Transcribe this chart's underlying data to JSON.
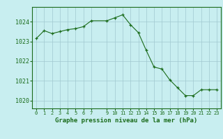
{
  "x": [
    0,
    1,
    2,
    3,
    4,
    5,
    6,
    7,
    9,
    10,
    11,
    12,
    13,
    14,
    15,
    16,
    17,
    18,
    19,
    20,
    21,
    22,
    23
  ],
  "y": [
    1023.15,
    1023.55,
    1023.4,
    1023.5,
    1023.6,
    1023.65,
    1023.75,
    1024.05,
    1024.05,
    1024.2,
    1024.35,
    1023.85,
    1023.45,
    1022.55,
    1021.7,
    1021.6,
    1021.05,
    1020.65,
    1020.25,
    1020.25,
    1020.55,
    1020.55,
    1020.55
  ],
  "line_color": "#1a6b1a",
  "marker_color": "#1a6b1a",
  "bg_color": "#c8eef0",
  "grid_color": "#a0c8d0",
  "xlabel": "Graphe pression niveau de la mer (hPa)",
  "xlabel_color": "#1a6b1a",
  "ylabel_ticks": [
    1020,
    1021,
    1022,
    1023,
    1024
  ],
  "xtick_positions": [
    0,
    1,
    2,
    3,
    4,
    5,
    6,
    7,
    9,
    10,
    11,
    12,
    13,
    14,
    15,
    16,
    17,
    18,
    19,
    20,
    21,
    22,
    23
  ],
  "xtick_labels": [
    "0",
    "1",
    "2",
    "3",
    "4",
    "5",
    "6",
    "7",
    "9",
    "10",
    "11",
    "12",
    "13",
    "14",
    "15",
    "16",
    "17",
    "18",
    "19",
    "20",
    "21",
    "22",
    "23"
  ],
  "ylim": [
    1019.6,
    1024.75
  ],
  "xlim": [
    -0.5,
    23.5
  ]
}
